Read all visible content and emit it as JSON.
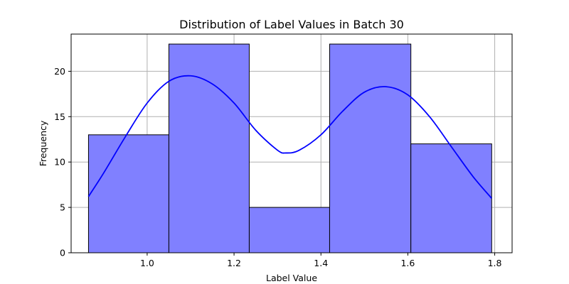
{
  "chart_data": {
    "type": "bar",
    "title": "Distribution of Label Values in Batch 30",
    "xlabel": "Label Value",
    "ylabel": "Frequency",
    "bins": [
      {
        "start": 0.865,
        "end": 1.05,
        "count": 13
      },
      {
        "start": 1.05,
        "end": 1.235,
        "count": 23
      },
      {
        "start": 1.235,
        "end": 1.42,
        "count": 5
      },
      {
        "start": 1.42,
        "end": 1.607,
        "count": 23
      },
      {
        "start": 1.607,
        "end": 1.793,
        "count": 12
      }
    ],
    "kde": {
      "x": [
        0.865,
        0.9,
        0.95,
        1.0,
        1.05,
        1.1,
        1.15,
        1.2,
        1.25,
        1.3,
        1.32,
        1.35,
        1.4,
        1.45,
        1.5,
        1.55,
        1.6,
        1.65,
        1.7,
        1.75,
        1.793
      ],
      "y": [
        6.2,
        8.8,
        12.8,
        16.5,
        18.9,
        19.5,
        18.6,
        16.5,
        13.5,
        11.3,
        11.0,
        11.3,
        13.0,
        15.6,
        17.7,
        18.3,
        17.4,
        15.0,
        11.7,
        8.4,
        6.0
      ]
    },
    "xlim": [
      0.825,
      1.84
    ],
    "ylim": [
      0,
      24.1
    ],
    "xticks": [
      {
        "value": 1.0,
        "label": "1.0"
      },
      {
        "value": 1.2,
        "label": "1.2"
      },
      {
        "value": 1.4,
        "label": "1.4"
      },
      {
        "value": 1.6,
        "label": "1.6"
      },
      {
        "value": 1.8,
        "label": "1.8"
      }
    ],
    "yticks": [
      {
        "value": 0,
        "label": "0"
      },
      {
        "value": 5,
        "label": "5"
      },
      {
        "value": 10,
        "label": "10"
      },
      {
        "value": 15,
        "label": "15"
      },
      {
        "value": 20,
        "label": "20"
      }
    ],
    "grid": true,
    "colors": {
      "bar_fill": "#8080ff",
      "bar_edge": "#000000",
      "kde_line": "#0000ff",
      "grid": "#b0b0b0"
    }
  }
}
